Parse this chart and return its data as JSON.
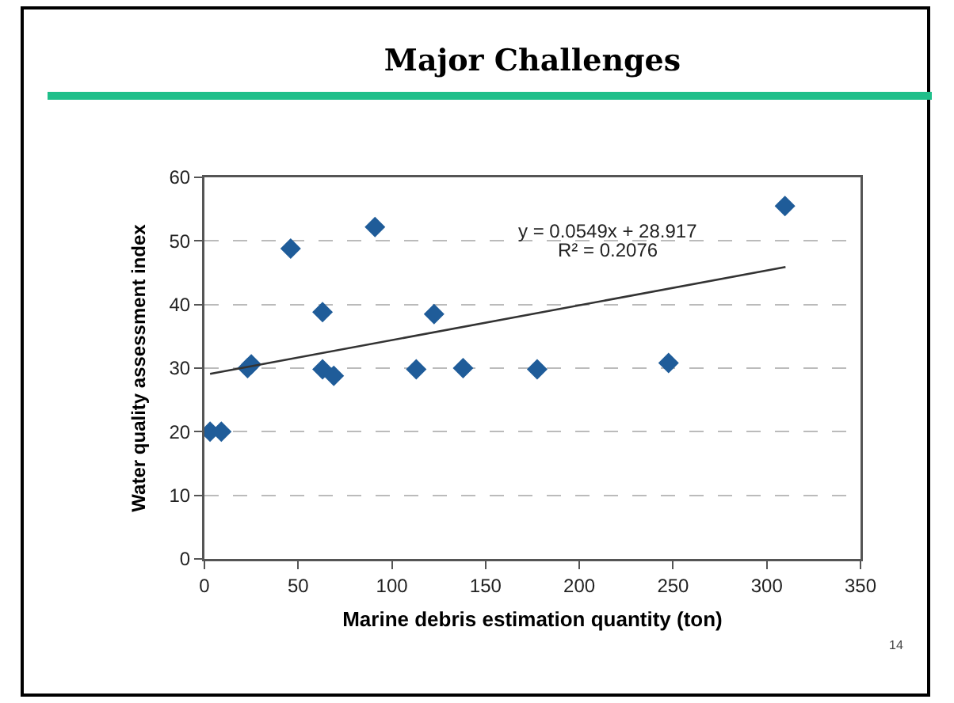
{
  "chart_data": {
    "type": "scatter",
    "title": "Major Challenges",
    "xlabel": "Marine debris estimation quantity (ton)",
    "ylabel": "Water quality assessment index",
    "xlim": [
      0,
      350
    ],
    "xticks": [
      0,
      50,
      100,
      150,
      200,
      250,
      300,
      350
    ],
    "ylim": [
      0,
      60
    ],
    "yticks": [
      0,
      10,
      20,
      30,
      40,
      50,
      60
    ],
    "grid": "y",
    "marker": "diamond",
    "series": [
      {
        "color": "#1f5c99",
        "x": [
          3,
          9,
          23,
          25,
          46,
          63,
          63,
          69,
          91,
          113,
          122.5,
          138,
          177.5,
          247.6,
          309.7
        ],
        "values": [
          20,
          20,
          30,
          30.6,
          48.8,
          38.8,
          29.8,
          28.8,
          52.2,
          29.8,
          38.5,
          30,
          29.8,
          30.8,
          55.5
        ]
      },
      {
        "type": "line",
        "color": "#333333",
        "line_style": "solid",
        "marker": "none",
        "x": [
          3,
          310
        ],
        "values": [
          29.1,
          45.9
        ]
      }
    ],
    "annotations": [
      "y = 0.0549x + 28.917",
      "R² = 0.2076",
      "14"
    ]
  }
}
